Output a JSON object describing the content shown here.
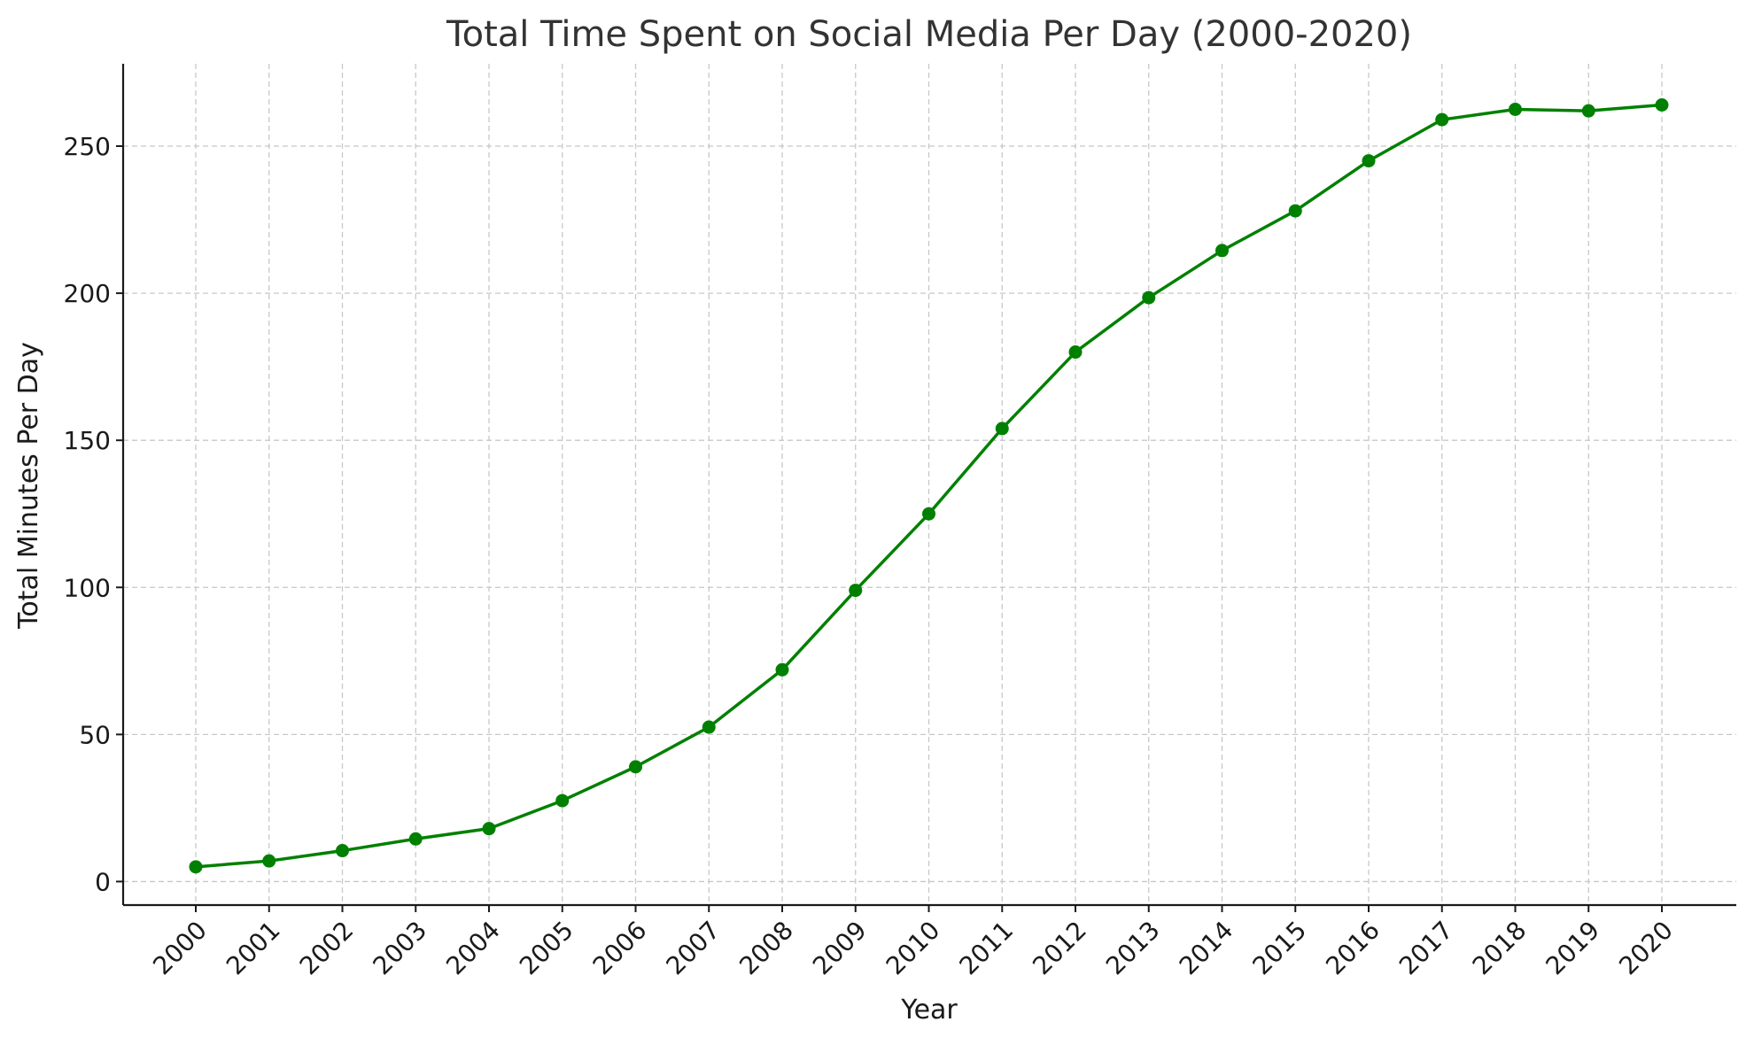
{
  "chart_data": {
    "type": "line",
    "title": "Total Time Spent on Social Media Per Day (2000-2020)",
    "xlabel": "Year",
    "ylabel": "Total Minutes Per Day",
    "categories": [
      "2000",
      "2001",
      "2002",
      "2003",
      "2004",
      "2005",
      "2006",
      "2007",
      "2008",
      "2009",
      "2010",
      "2011",
      "2012",
      "2013",
      "2014",
      "2015",
      "2016",
      "2017",
      "2018",
      "2019",
      "2020"
    ],
    "series": [
      {
        "name": "",
        "values": [
          5,
          7,
          10.5,
          14.5,
          18,
          27.5,
          39,
          52.5,
          72,
          99,
          125,
          154,
          180,
          198.5,
          214.5,
          228,
          245,
          259,
          262.5,
          262,
          264
        ]
      }
    ],
    "ylim": [
      -8,
      278
    ],
    "yticks": [
      0,
      50,
      100,
      150,
      200,
      250
    ],
    "ytick_labels": [
      "0",
      "50",
      "100",
      "150",
      "200",
      "250"
    ],
    "grid": true,
    "colors": {
      "line": "#008000",
      "marker": "#008000",
      "grid": "#c8c8c8",
      "axis": "#1a1a1a",
      "title": "#333333"
    },
    "legend": "none"
  }
}
